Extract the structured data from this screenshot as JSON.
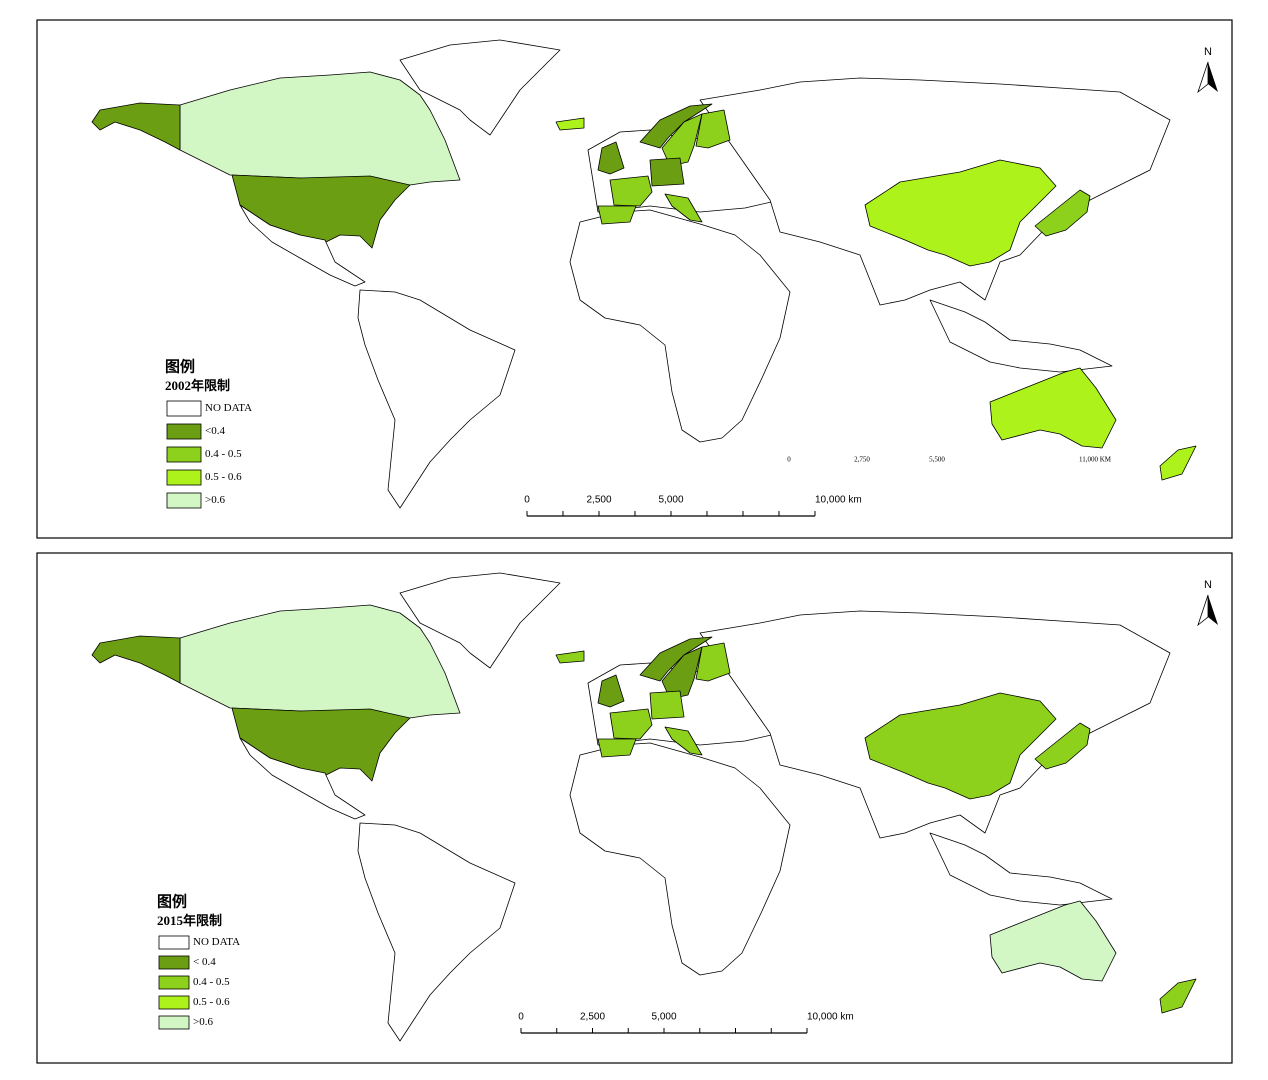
{
  "maps": [
    {
      "north": "N",
      "legend": {
        "title": "图例",
        "subtitle": "2002年限制",
        "items": [
          {
            "label": "NO DATA",
            "color": "#ffffff"
          },
          {
            "label": "<0.4",
            "color": "#6b9e12"
          },
          {
            "label": "0.4 - 0.5",
            "color": "#8ed11c"
          },
          {
            "label": "0.5 - 0.6",
            "color": "#adf21b"
          },
          {
            "label": ">0.6",
            "color": "#d3f6c5"
          }
        ]
      },
      "scale_bar": {
        "labels": [
          "0",
          "2,500",
          "5,000",
          "10,000 km"
        ]
      },
      "secondary_scale": {
        "labels": [
          "0",
          "2,750",
          "5,500",
          "11,000 KM"
        ]
      }
    },
    {
      "north": "N",
      "legend": {
        "title": "图例",
        "subtitle": "2015年限制",
        "items": [
          {
            "label": "NO DATA",
            "color": "#ffffff"
          },
          {
            "label": "< 0.4",
            "color": "#6b9e12"
          },
          {
            "label": "0.4 - 0.5",
            "color": "#8ed11c"
          },
          {
            "label": "0.5 - 0.6",
            "color": "#adf21b"
          },
          {
            "label": ">0.6",
            "color": "#d3f6c5"
          }
        ]
      },
      "scale_bar": {
        "labels": [
          "0",
          "2,500",
          "5,000",
          "10,000 km"
        ]
      }
    }
  ]
}
